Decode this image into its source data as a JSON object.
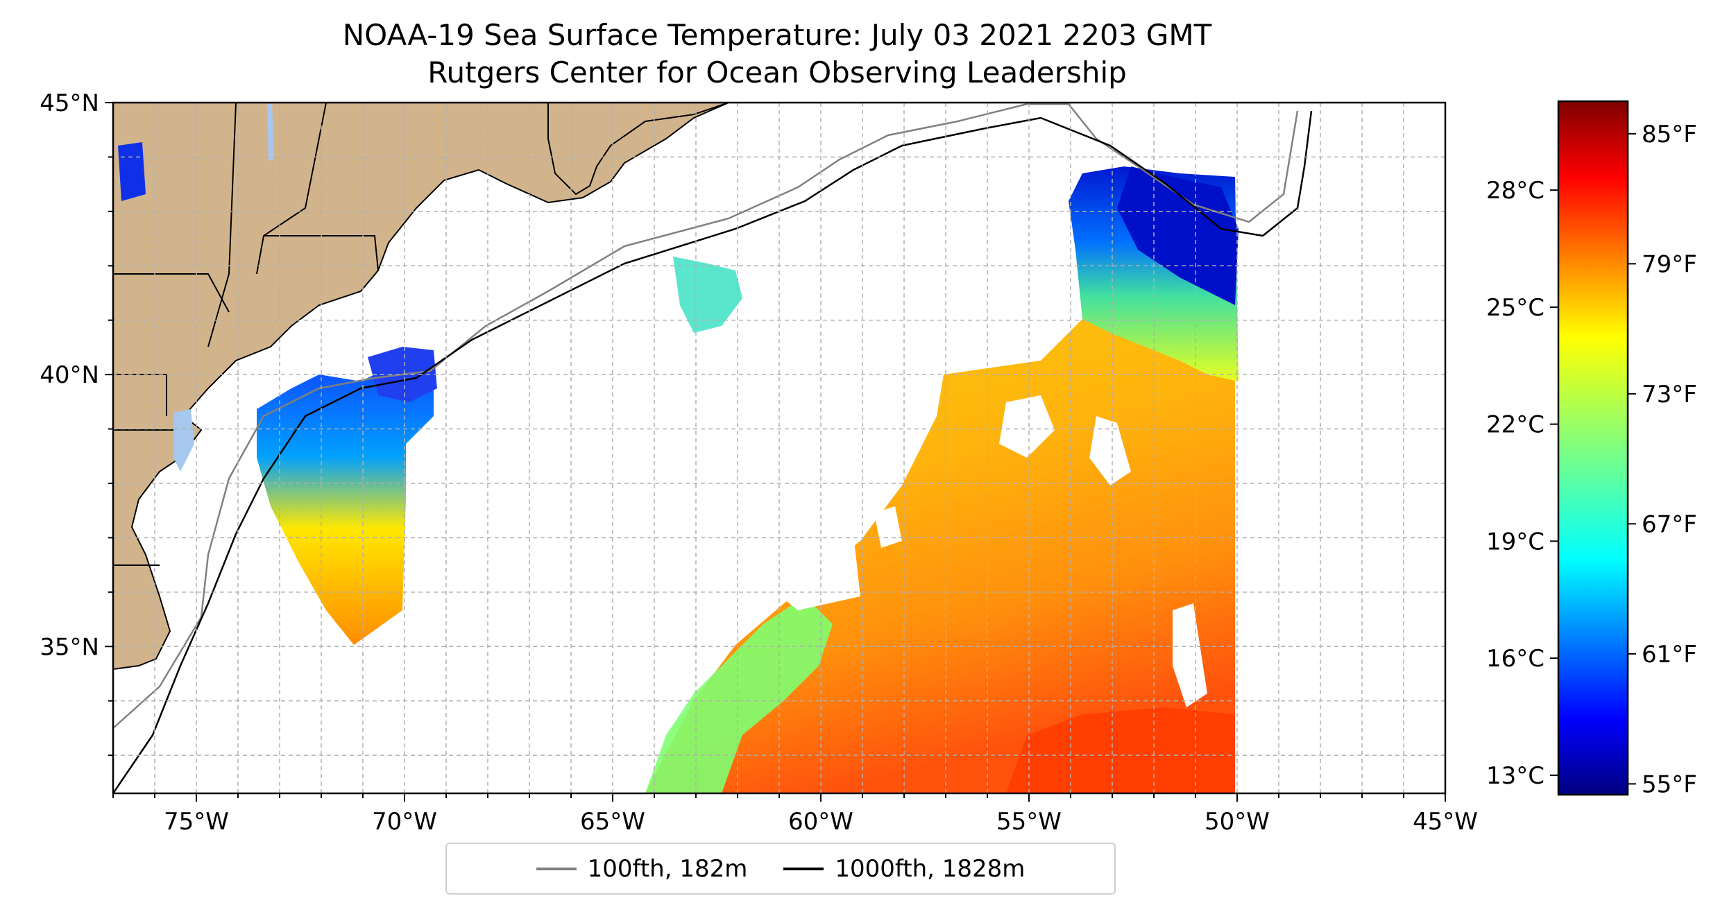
{
  "title": "NOAA-19 Sea Surface Temperature: July 03 2021 2203 GMT",
  "subtitle": "Rutgers Center for Ocean Observing Leadership",
  "map": {
    "lon_range": [
      -77,
      -45
    ],
    "lat_range": [
      32.3,
      45
    ],
    "lon_ticks": [
      "75°W",
      "70°W",
      "65°W",
      "60°W",
      "55°W",
      "50°W",
      "45°W"
    ],
    "lon_tick_values": [
      -75,
      -70,
      -65,
      -60,
      -55,
      -50,
      -45
    ],
    "lat_ticks": [
      "45°N",
      "40°N",
      "35°N"
    ],
    "lat_tick_values": [
      45,
      40,
      35
    ],
    "grid": "dashed, 1° spacing",
    "land_color": "#d2b48c",
    "water_color": "#a6c8ef"
  },
  "legend": {
    "placement": "bottom-center",
    "items": [
      {
        "label": "100fth, 182m",
        "color": "#808080"
      },
      {
        "label": "1000fth, 1828m",
        "color": "#000000"
      }
    ]
  },
  "colorbar": {
    "colormap": "jet",
    "celsius_ticks": [
      "28°C",
      "25°C",
      "22°C",
      "19°C",
      "16°C",
      "13°C"
    ],
    "celsius_values": [
      28,
      25,
      22,
      19,
      16,
      13
    ],
    "fahrenheit_ticks": [
      "85°F",
      "79°F",
      "73°F",
      "67°F",
      "61°F",
      "55°F"
    ],
    "fahrenheit_values": [
      85,
      79,
      73,
      67,
      61,
      55
    ],
    "range_f": [
      54.5,
      86.5
    ]
  }
}
